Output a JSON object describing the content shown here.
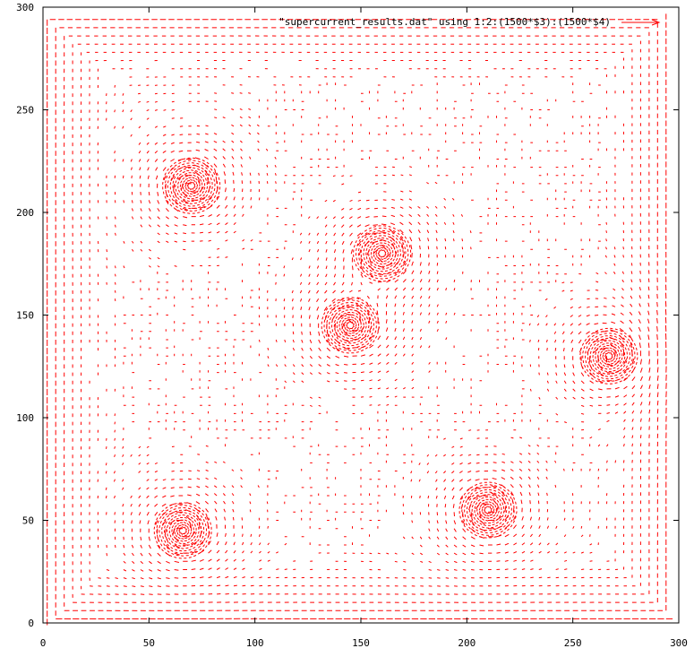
{
  "chart_data": {
    "type": "scatter",
    "legend": {
      "label": "\"supercurrent_results.dat\" using 1:2:(1500*$3):(1500*$4)",
      "position": "top-right"
    },
    "xlim": [
      0,
      300
    ],
    "ylim": [
      0,
      300
    ],
    "xticks": [
      "0",
      "50",
      "100",
      "150",
      "200",
      "250",
      "300"
    ],
    "yticks": [
      "0",
      "50",
      "100",
      "150",
      "200",
      "250",
      "300"
    ],
    "grid": false,
    "series_color": "#ff0000",
    "vortices": [
      {
        "x": 70,
        "y": 213
      },
      {
        "x": 160,
        "y": 180
      },
      {
        "x": 145,
        "y": 145
      },
      {
        "x": 267,
        "y": 130
      },
      {
        "x": 210,
        "y": 55
      },
      {
        "x": 66,
        "y": 45
      }
    ]
  }
}
